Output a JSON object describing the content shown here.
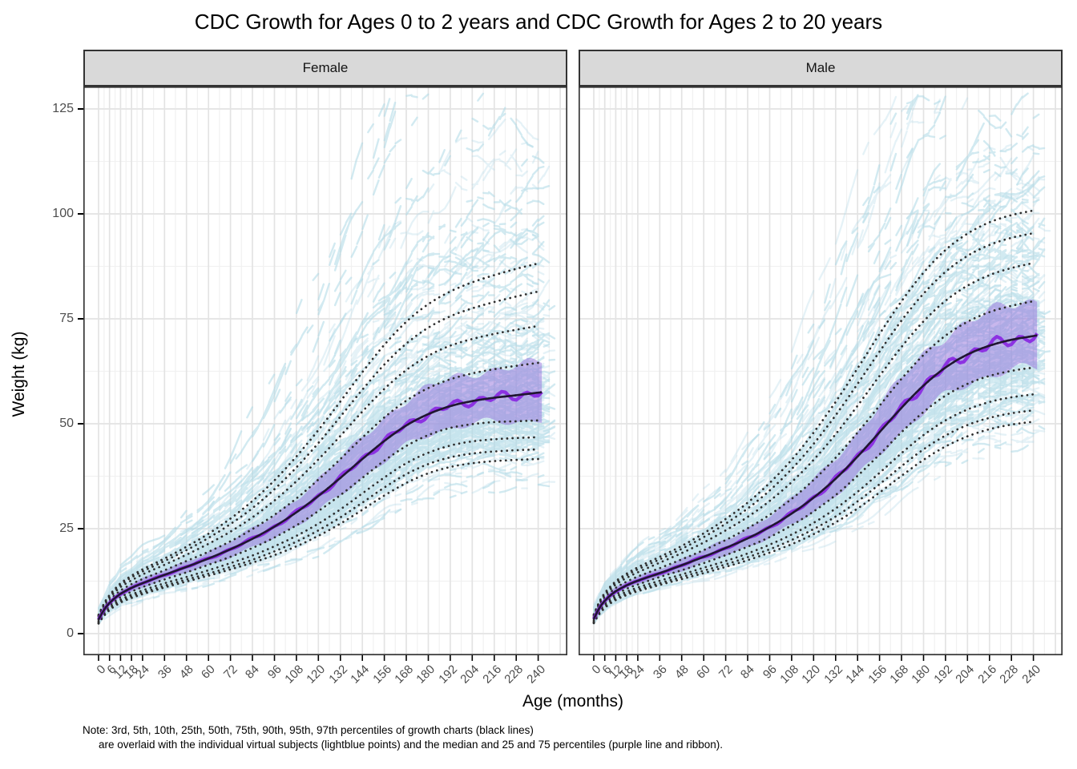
{
  "note": {
    "line1": "Note: 3rd, 5th, 10th, 25th, 50th, 75th, 90th, 95th, 97th percentiles of growth charts (black lines)",
    "line2": "are overlaid with the individual virtual subjects (lightblue points) and the median and 25 and 75 percentiles (purple line and ribbon)."
  },
  "chart_data": {
    "type": "line",
    "title": "CDC Growth for Ages 0 to 2 years and CDC Growth for Ages 2 to 20 years",
    "xlabel": "Age (months)",
    "ylabel": "Weight (kg)",
    "x_ticks": [
      0,
      6,
      12,
      18,
      24,
      36,
      48,
      60,
      72,
      84,
      96,
      108,
      120,
      132,
      144,
      156,
      168,
      180,
      192,
      204,
      216,
      228,
      240
    ],
    "y_ticks": [
      0,
      25,
      50,
      75,
      100,
      125
    ],
    "xlim": [
      -8.3,
      256.6
    ],
    "ylim": [
      -5.2,
      130.3
    ],
    "grid": {
      "major": true,
      "minor": true
    },
    "legend_position": "none",
    "percentile_labels": [
      "3rd",
      "5th",
      "10th",
      "25th",
      "50th",
      "75th",
      "90th",
      "95th",
      "97th"
    ],
    "percentile_z_scores": [
      -1.881,
      -1.645,
      -1.282,
      -0.674,
      0,
      0.674,
      1.282,
      1.645,
      1.881
    ],
    "x_sample_ages": [
      0,
      3,
      6,
      9,
      12,
      18,
      24,
      36,
      48,
      60,
      72,
      84,
      96,
      108,
      120,
      132,
      144,
      156,
      168,
      180,
      192,
      204,
      216,
      228,
      240
    ],
    "facets": [
      {
        "label": "Female",
        "percentiles": {
          "p3": [
            2.4,
            4.3,
            5.6,
            6.6,
            7.4,
            8.5,
            9.4,
            11.0,
            12.4,
            13.8,
            15.3,
            16.9,
            18.7,
            20.8,
            23.3,
            26.2,
            29.5,
            32.9,
            35.9,
            38.2,
            39.7,
            40.6,
            41.1,
            41.4,
            41.6
          ],
          "p5": [
            2.5,
            4.5,
            5.9,
            6.9,
            7.7,
            8.9,
            9.8,
            11.4,
            12.9,
            14.3,
            15.9,
            17.6,
            19.6,
            21.9,
            24.6,
            27.7,
            31.2,
            34.8,
            38.0,
            40.4,
            42.0,
            42.9,
            43.4,
            43.7,
            43.9
          ],
          "p10": [
            2.7,
            4.8,
            6.2,
            7.3,
            8.1,
            9.3,
            10.3,
            12.0,
            13.5,
            15.1,
            16.8,
            18.6,
            20.8,
            23.3,
            26.2,
            29.6,
            33.4,
            37.2,
            40.6,
            43.1,
            44.8,
            45.8,
            46.3,
            46.6,
            46.8
          ],
          "p25": [
            3.0,
            5.2,
            6.7,
            7.8,
            8.7,
            10.0,
            11.1,
            12.9,
            14.6,
            16.4,
            18.3,
            20.4,
            22.9,
            25.8,
            29.2,
            33.0,
            37.1,
            41.2,
            44.7,
            47.3,
            49.0,
            49.9,
            50.4,
            50.6,
            50.8
          ],
          "p50": [
            3.4,
            5.7,
            7.3,
            8.5,
            9.5,
            10.9,
            12.0,
            14.0,
            15.9,
            17.9,
            20.1,
            22.6,
            25.5,
            28.9,
            32.8,
            37.1,
            41.6,
            45.9,
            49.6,
            52.3,
            54.2,
            55.4,
            56.2,
            56.8,
            57.4
          ],
          "p75": [
            3.7,
            6.2,
            7.9,
            9.2,
            10.3,
            11.8,
            13.0,
            15.1,
            17.3,
            19.5,
            22.0,
            24.9,
            28.3,
            32.2,
            36.7,
            41.6,
            46.7,
            51.5,
            55.5,
            58.5,
            60.6,
            62.0,
            63.0,
            63.8,
            64.5
          ],
          "p90": [
            4.1,
            6.7,
            8.5,
            9.9,
            11.1,
            12.7,
            14.1,
            16.4,
            18.8,
            21.4,
            24.3,
            27.7,
            31.7,
            36.3,
            41.5,
            47.1,
            52.9,
            58.3,
            62.8,
            66.2,
            68.6,
            70.2,
            71.4,
            72.4,
            73.3
          ],
          "p95": [
            4.3,
            7.0,
            8.9,
            10.4,
            11.6,
            13.4,
            14.8,
            17.3,
            19.9,
            22.8,
            26.1,
            29.9,
            34.4,
            39.6,
            45.4,
            51.7,
            58.1,
            64.1,
            69.1,
            72.9,
            75.6,
            77.5,
            79.0,
            80.3,
            81.5
          ],
          "p97": [
            4.5,
            7.2,
            9.2,
            10.7,
            12.0,
            13.8,
            15.3,
            17.9,
            20.7,
            23.8,
            27.4,
            31.6,
            36.5,
            42.2,
            48.5,
            55.3,
            62.3,
            68.8,
            74.3,
            78.5,
            81.5,
            83.7,
            85.4,
            86.9,
            88.2
          ]
        }
      },
      {
        "label": "Male",
        "percentiles": {
          "p3": [
            2.5,
            4.7,
            6.1,
            7.2,
            8.0,
            9.2,
            10.1,
            11.6,
            13.0,
            14.4,
            15.9,
            17.5,
            19.3,
            21.3,
            23.7,
            26.5,
            29.8,
            33.6,
            37.6,
            41.4,
            44.6,
            47.0,
            48.7,
            49.8,
            50.5
          ],
          "p5": [
            2.6,
            4.9,
            6.4,
            7.5,
            8.3,
            9.5,
            10.5,
            12.0,
            13.5,
            15.0,
            16.5,
            18.2,
            20.1,
            22.3,
            24.9,
            27.9,
            31.5,
            35.6,
            39.9,
            43.9,
            47.2,
            49.7,
            51.4,
            52.5,
            53.2
          ],
          "p10": [
            2.8,
            5.2,
            6.8,
            7.9,
            8.8,
            10.0,
            11.0,
            12.6,
            14.1,
            15.7,
            17.3,
            19.1,
            21.2,
            23.6,
            26.4,
            29.8,
            33.8,
            38.3,
            43.0,
            47.3,
            50.8,
            53.4,
            55.2,
            56.3,
            57.0
          ],
          "p25": [
            3.1,
            5.6,
            7.2,
            8.4,
            9.3,
            10.7,
            11.7,
            13.5,
            15.1,
            16.8,
            18.7,
            20.7,
            23.0,
            25.8,
            29.1,
            33.0,
            37.6,
            42.7,
            48.0,
            52.8,
            56.7,
            59.5,
            61.4,
            62.6,
            63.4
          ],
          "p50": [
            3.5,
            6.1,
            7.8,
            9.1,
            10.1,
            11.5,
            12.6,
            14.4,
            16.3,
            18.3,
            20.4,
            22.7,
            25.4,
            28.6,
            32.4,
            36.9,
            42.2,
            48.0,
            53.8,
            59.1,
            63.4,
            66.5,
            68.6,
            70.0,
            70.9
          ],
          "p75": [
            3.9,
            6.6,
            8.4,
            9.8,
            10.9,
            12.4,
            13.6,
            15.6,
            17.7,
            19.9,
            22.3,
            25.1,
            28.3,
            32.1,
            36.6,
            41.9,
            47.9,
            54.3,
            60.7,
            66.4,
            71.0,
            74.3,
            76.6,
            78.1,
            79.2
          ],
          "p90": [
            4.2,
            7.1,
            9.0,
            10.5,
            11.7,
            13.3,
            14.6,
            16.9,
            19.2,
            21.7,
            24.6,
            27.8,
            31.6,
            36.1,
            41.4,
            47.5,
            54.3,
            61.4,
            68.3,
            74.4,
            79.3,
            82.9,
            85.4,
            87.1,
            88.3
          ],
          "p95": [
            4.4,
            7.4,
            9.4,
            10.9,
            12.2,
            13.9,
            15.3,
            17.7,
            20.2,
            23.0,
            26.2,
            29.8,
            34.1,
            39.2,
            45.2,
            52.0,
            59.5,
            67.2,
            74.6,
            81.0,
            86.2,
            90.0,
            92.6,
            94.3,
            95.4
          ],
          "p97": [
            4.6,
            7.6,
            9.7,
            11.2,
            12.5,
            14.3,
            15.8,
            18.3,
            20.9,
            23.9,
            27.3,
            31.2,
            35.9,
            41.4,
            47.9,
            55.2,
            63.2,
            71.4,
            79.2,
            86.0,
            91.4,
            95.3,
            98.0,
            99.7,
            100.8
          ]
        }
      }
    ],
    "scatter": {
      "description": "individual virtual subjects shown as short lightblue point-dashes",
      "color": "#ADD8E6",
      "n_subjects_per_facet": 340
    },
    "styles": {
      "percentile_line_color": "#2e2e2e",
      "median_line_color": "#8A2BE2",
      "median_overlay_color": "#201631",
      "ribbon_color": "#9370DB",
      "grid_major_color": "#e3e3e3",
      "grid_minor_color": "#f1f1f1",
      "panel_border_color": "#333333",
      "strip_fill": "#d9d9d9",
      "tick_label_color": "#4d4d4d"
    }
  }
}
